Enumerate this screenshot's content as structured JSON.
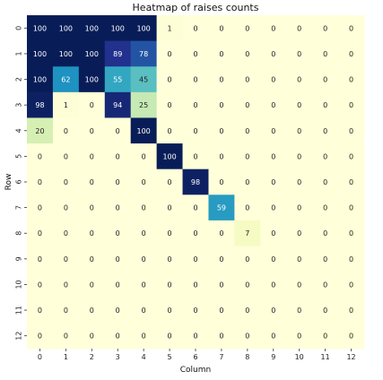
{
  "chart_data": {
    "type": "heatmap",
    "title": "Heatmap of raises counts",
    "xlabel": "Column",
    "ylabel": "Row",
    "x_tick_labels": [
      "0",
      "1",
      "2",
      "3",
      "4",
      "5",
      "6",
      "7",
      "8",
      "9",
      "10",
      "11",
      "12"
    ],
    "y_tick_labels": [
      "0",
      "1",
      "2",
      "3",
      "4",
      "5",
      "6",
      "7",
      "8",
      "9",
      "10",
      "11",
      "12"
    ],
    "value_range": [
      0,
      100
    ],
    "colormap": "YlGnBu",
    "annotated": true,
    "colorbar": false,
    "values": [
      [
        100,
        100,
        100,
        100,
        100,
        1,
        0,
        0,
        0,
        0,
        0,
        0,
        0
      ],
      [
        100,
        100,
        100,
        89,
        78,
        0,
        0,
        0,
        0,
        0,
        0,
        0,
        0
      ],
      [
        100,
        62,
        100,
        55,
        45,
        0,
        0,
        0,
        0,
        0,
        0,
        0,
        0
      ],
      [
        98,
        1,
        0,
        94,
        25,
        0,
        0,
        0,
        0,
        0,
        0,
        0,
        0
      ],
      [
        20,
        0,
        0,
        0,
        100,
        0,
        0,
        0,
        0,
        0,
        0,
        0,
        0
      ],
      [
        0,
        0,
        0,
        0,
        0,
        100,
        0,
        0,
        0,
        0,
        0,
        0,
        0
      ],
      [
        0,
        0,
        0,
        0,
        0,
        0,
        98,
        0,
        0,
        0,
        0,
        0,
        0
      ],
      [
        0,
        0,
        0,
        0,
        0,
        0,
        0,
        59,
        0,
        0,
        0,
        0,
        0
      ],
      [
        0,
        0,
        0,
        0,
        0,
        0,
        0,
        0,
        7,
        0,
        0,
        0,
        0
      ],
      [
        0,
        0,
        0,
        0,
        0,
        0,
        0,
        0,
        0,
        0,
        0,
        0,
        0
      ],
      [
        0,
        0,
        0,
        0,
        0,
        0,
        0,
        0,
        0,
        0,
        0,
        0,
        0
      ],
      [
        0,
        0,
        0,
        0,
        0,
        0,
        0,
        0,
        0,
        0,
        0,
        0,
        0
      ],
      [
        0,
        0,
        0,
        0,
        0,
        0,
        0,
        0,
        0,
        0,
        0,
        0,
        0
      ]
    ]
  }
}
